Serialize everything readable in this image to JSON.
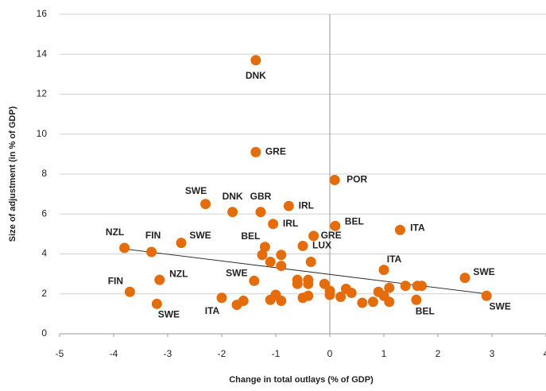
{
  "chart_data": {
    "type": "scatter",
    "x_label": "Change in total outlays (% of GDP)",
    "y_label": "Size of adjustment (in % of GDP)",
    "color": "#e46c0a",
    "x": [
      -1.37,
      -1.37,
      0.09,
      -2.3,
      -1.8,
      -1.28,
      -0.76,
      -1.05,
      0.1,
      1.3,
      -3.8,
      -3.3,
      -2.75,
      -0.3,
      -1.2,
      -1.25,
      -1.1,
      -0.9,
      -0.9,
      -0.5,
      -0.35,
      1.0,
      2.5,
      -3.15,
      -1.4,
      -3.7,
      -3.2,
      -2.0,
      2.9,
      1.6,
      -1.72,
      -1.6,
      -1.1,
      -1.0,
      -0.9,
      -0.6,
      -0.6,
      -0.4,
      -0.4,
      -0.5,
      -0.4,
      -0.1,
      0.0,
      0.0,
      0.2,
      0.3,
      0.4,
      0.6,
      0.8,
      0.9,
      1.0,
      1.1,
      1.1,
      1.4,
      1.62,
      1.7
    ],
    "values": [
      13.7,
      9.1,
      7.7,
      6.5,
      6.1,
      6.1,
      6.4,
      5.5,
      5.4,
      5.2,
      4.3,
      4.1,
      4.55,
      4.9,
      4.35,
      3.95,
      3.6,
      3.95,
      3.4,
      4.4,
      3.6,
      3.2,
      2.8,
      2.7,
      2.65,
      2.1,
      1.5,
      1.8,
      1.9,
      1.7,
      1.45,
      1.65,
      1.7,
      1.95,
      1.65,
      2.7,
      2.5,
      2.7,
      2.5,
      1.8,
      1.9,
      2.5,
      2.15,
      1.95,
      1.85,
      2.25,
      2.05,
      1.55,
      1.6,
      2.1,
      1.9,
      2.3,
      1.6,
      2.4,
      2.4,
      2.4
    ],
    "labels": [
      "DNK",
      "GRE",
      "POR",
      "SWE",
      "DNK",
      "GBR",
      "IRL",
      "IRL",
      "BEL",
      "ITA",
      "NZL",
      "FIN",
      "SWE",
      "GRE",
      "BEL",
      null,
      null,
      null,
      null,
      "LUX",
      null,
      "ITA",
      "SWE",
      "NZL",
      "SWE",
      "FIN",
      "SWE",
      "ITA",
      "SWE",
      "BEL",
      null,
      null,
      null,
      null,
      null,
      null,
      null,
      null,
      null,
      null,
      null,
      null,
      null,
      null,
      null,
      null,
      null,
      null,
      null,
      null,
      null,
      null,
      null,
      null,
      null,
      null
    ],
    "trendline": {
      "x": [
        -3.8,
        2.9
      ],
      "y": [
        4.25,
        2.0
      ]
    },
    "xlim": [
      -5,
      4
    ],
    "xticks": [
      -5,
      -4,
      -3,
      -2,
      -1,
      0,
      1,
      2,
      3,
      4
    ],
    "ylim": [
      0,
      16
    ],
    "yticks": [
      0,
      2,
      4,
      6,
      8,
      10,
      12,
      14,
      16
    ],
    "grid": true
  }
}
